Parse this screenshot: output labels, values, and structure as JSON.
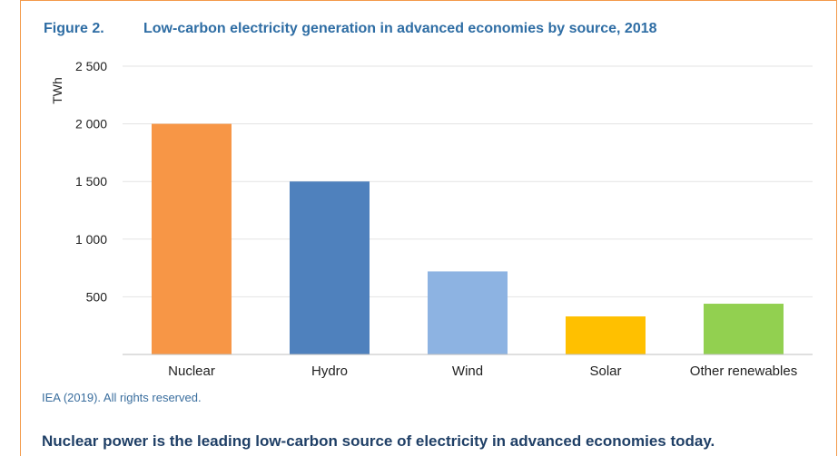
{
  "figure": {
    "label": "Figure 2.",
    "title": "Low-carbon electricity generation in advanced economies by source, 2018",
    "source": "IEA (2019). All rights reserved.",
    "caption": "Nuclear power is the leading low-carbon source of electricity in advanced economies today."
  },
  "chart_data": {
    "type": "bar",
    "title": "Low-carbon electricity generation in advanced economies by source, 2018",
    "xlabel": "",
    "ylabel": "TWh",
    "ylim": [
      0,
      2500
    ],
    "yticks": [
      500,
      1000,
      1500,
      2000,
      2500
    ],
    "ytick_labels": [
      "500",
      "1 000",
      "1 500",
      "2 000",
      "2 500"
    ],
    "grid": true,
    "categories": [
      "Nuclear",
      "Hydro",
      "Wind",
      "Solar",
      "Other renewables"
    ],
    "values": [
      2000,
      1500,
      720,
      330,
      440
    ],
    "colors": [
      "#f79646",
      "#4f81bd",
      "#8db3e2",
      "#ffc000",
      "#92d050"
    ]
  }
}
